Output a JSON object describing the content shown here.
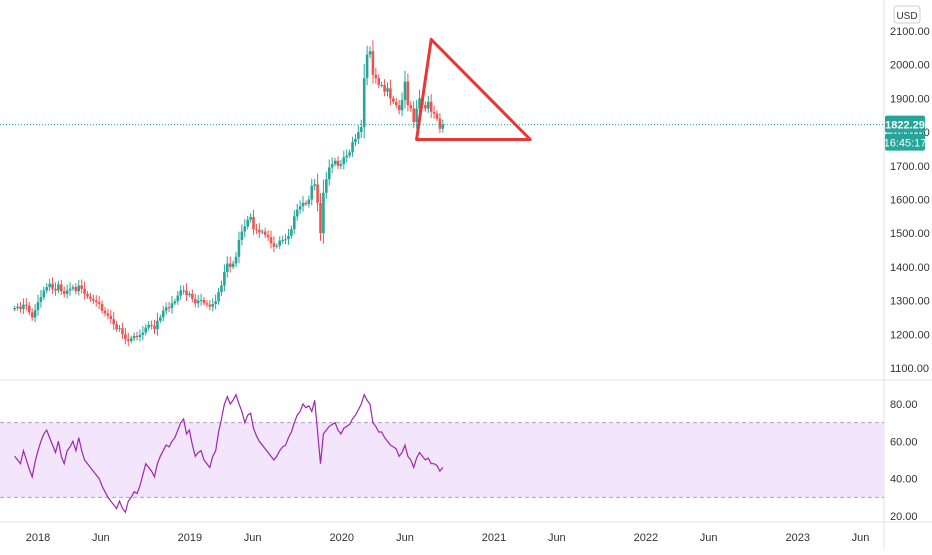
{
  "currency_label": "USD",
  "colors": {
    "up": "#26a69a",
    "down": "#ef5350",
    "pattern": "#e53935",
    "rsi_line": "#9c27b0",
    "rsi_band": "#f3e5fc",
    "price_badge": "#26a69a",
    "axis_text": "#333333"
  },
  "chart_data": [
    {
      "type": "candlestick",
      "title": "",
      "xlabel": "",
      "ylabel": "",
      "ylim": [
        1080,
        2130
      ],
      "y_ticks": [
        "1100.00",
        "1200.00",
        "1300.00",
        "1400.00",
        "1500.00",
        "1600.00",
        "1700.00",
        "1800.00",
        "1900.00",
        "2000.00",
        "2100.00"
      ],
      "last_price": "1822.29",
      "countdown": "16:45:17",
      "close_series": {
        "x_start": "2017-11-06",
        "interval_days": 7,
        "closes": [
          1278,
          1282,
          1275,
          1288,
          1285,
          1265,
          1250,
          1272,
          1296,
          1310,
          1330,
          1340,
          1350,
          1335,
          1330,
          1348,
          1328,
          1320,
          1330,
          1335,
          1340,
          1328,
          1345,
          1335,
          1320,
          1312,
          1305,
          1300,
          1295,
          1290,
          1270,
          1262,
          1255,
          1245,
          1230,
          1215,
          1218,
          1200,
          1185,
          1180,
          1188,
          1195,
          1192,
          1198,
          1205,
          1220,
          1228,
          1225,
          1215,
          1240,
          1250,
          1270,
          1280,
          1278,
          1292,
          1298,
          1315,
          1330,
          1330,
          1316,
          1320,
          1305,
          1292,
          1300,
          1302,
          1292,
          1288,
          1282,
          1290,
          1298,
          1325,
          1345,
          1385,
          1410,
          1400,
          1410,
          1430,
          1480,
          1505,
          1520,
          1540,
          1548,
          1512,
          1510,
          1502,
          1505,
          1495,
          1488,
          1470,
          1460,
          1463,
          1478,
          1480,
          1482,
          1492,
          1512,
          1550,
          1570,
          1580,
          1590,
          1586,
          1600,
          1640,
          1645,
          1590,
          1500,
          1620,
          1660,
          1695,
          1705,
          1715,
          1700,
          1705,
          1725,
          1730,
          1740,
          1770,
          1780,
          1800,
          1815,
          1960,
          2030,
          2040,
          1970,
          1960,
          1940,
          1940,
          1920,
          1930,
          1900,
          1890,
          1880,
          1865,
          1895,
          1950,
          1880,
          1870,
          1830,
          1870,
          1900,
          1880,
          1870,
          1890,
          1860,
          1855,
          1840,
          1810,
          1822
        ]
      },
      "patterns": [
        {
          "name": "descending triangle",
          "vertices": [
            [
              "2020-08-03",
              2075
            ],
            [
              "2021-03-29",
              1778
            ],
            [
              "2020-06-29",
              1778
            ]
          ]
        }
      ]
    },
    {
      "type": "line",
      "title": "",
      "series": [
        {
          "values": [
            52,
            50,
            48,
            55,
            50,
            45,
            41,
            49,
            55,
            60,
            64,
            66,
            62,
            58,
            54,
            60,
            52,
            48,
            55,
            57,
            60,
            55,
            62,
            55,
            50,
            48,
            46,
            44,
            42,
            40,
            36,
            33,
            30,
            28,
            26,
            24,
            28,
            24,
            22,
            28,
            30,
            33,
            32,
            36,
            42,
            48,
            46,
            44,
            41,
            48,
            52,
            55,
            58,
            57,
            60,
            62,
            66,
            70,
            72,
            64,
            66,
            58,
            52,
            54,
            55,
            50,
            48,
            46,
            52,
            55,
            65,
            72,
            80,
            84,
            80,
            82,
            85,
            80,
            76,
            70,
            74,
            75,
            67,
            63,
            60,
            58,
            56,
            54,
            52,
            50,
            52,
            55,
            57,
            58,
            62,
            65,
            70,
            74,
            76,
            80,
            78,
            79,
            76,
            82,
            65,
            48,
            64,
            66,
            68,
            69,
            70,
            66,
            64,
            67,
            68,
            69,
            72,
            74,
            77,
            80,
            85,
            82,
            80,
            70,
            68,
            65,
            65,
            62,
            60,
            58,
            57,
            56,
            52,
            54,
            58,
            52,
            50,
            46,
            51,
            54,
            52,
            50,
            51,
            48,
            48,
            47,
            44,
            46
          ]
        }
      ],
      "ylim": [
        18,
        88
      ],
      "y_ticks": [
        "20.00",
        "40.00",
        "60.00",
        "80.00"
      ],
      "overbought": 70,
      "oversold": 30
    }
  ],
  "x_ticks": [
    {
      "label": "2018",
      "date": "2018-01-01"
    },
    {
      "label": "Jun",
      "date": "2018-06-01"
    },
    {
      "label": "2019",
      "date": "2019-01-01"
    },
    {
      "label": "Jun",
      "date": "2019-06-01"
    },
    {
      "label": "2020",
      "date": "2020-01-01"
    },
    {
      "label": "Jun",
      "date": "2020-06-01"
    },
    {
      "label": "2021",
      "date": "2021-01-01"
    },
    {
      "label": "Jun",
      "date": "2021-06-01"
    },
    {
      "label": "2022",
      "date": "2022-01-01"
    },
    {
      "label": "Jun",
      "date": "2022-06-01"
    },
    {
      "label": "2023",
      "date": "2023-01-01"
    },
    {
      "label": "Jun",
      "date": "2023-06-01"
    }
  ]
}
